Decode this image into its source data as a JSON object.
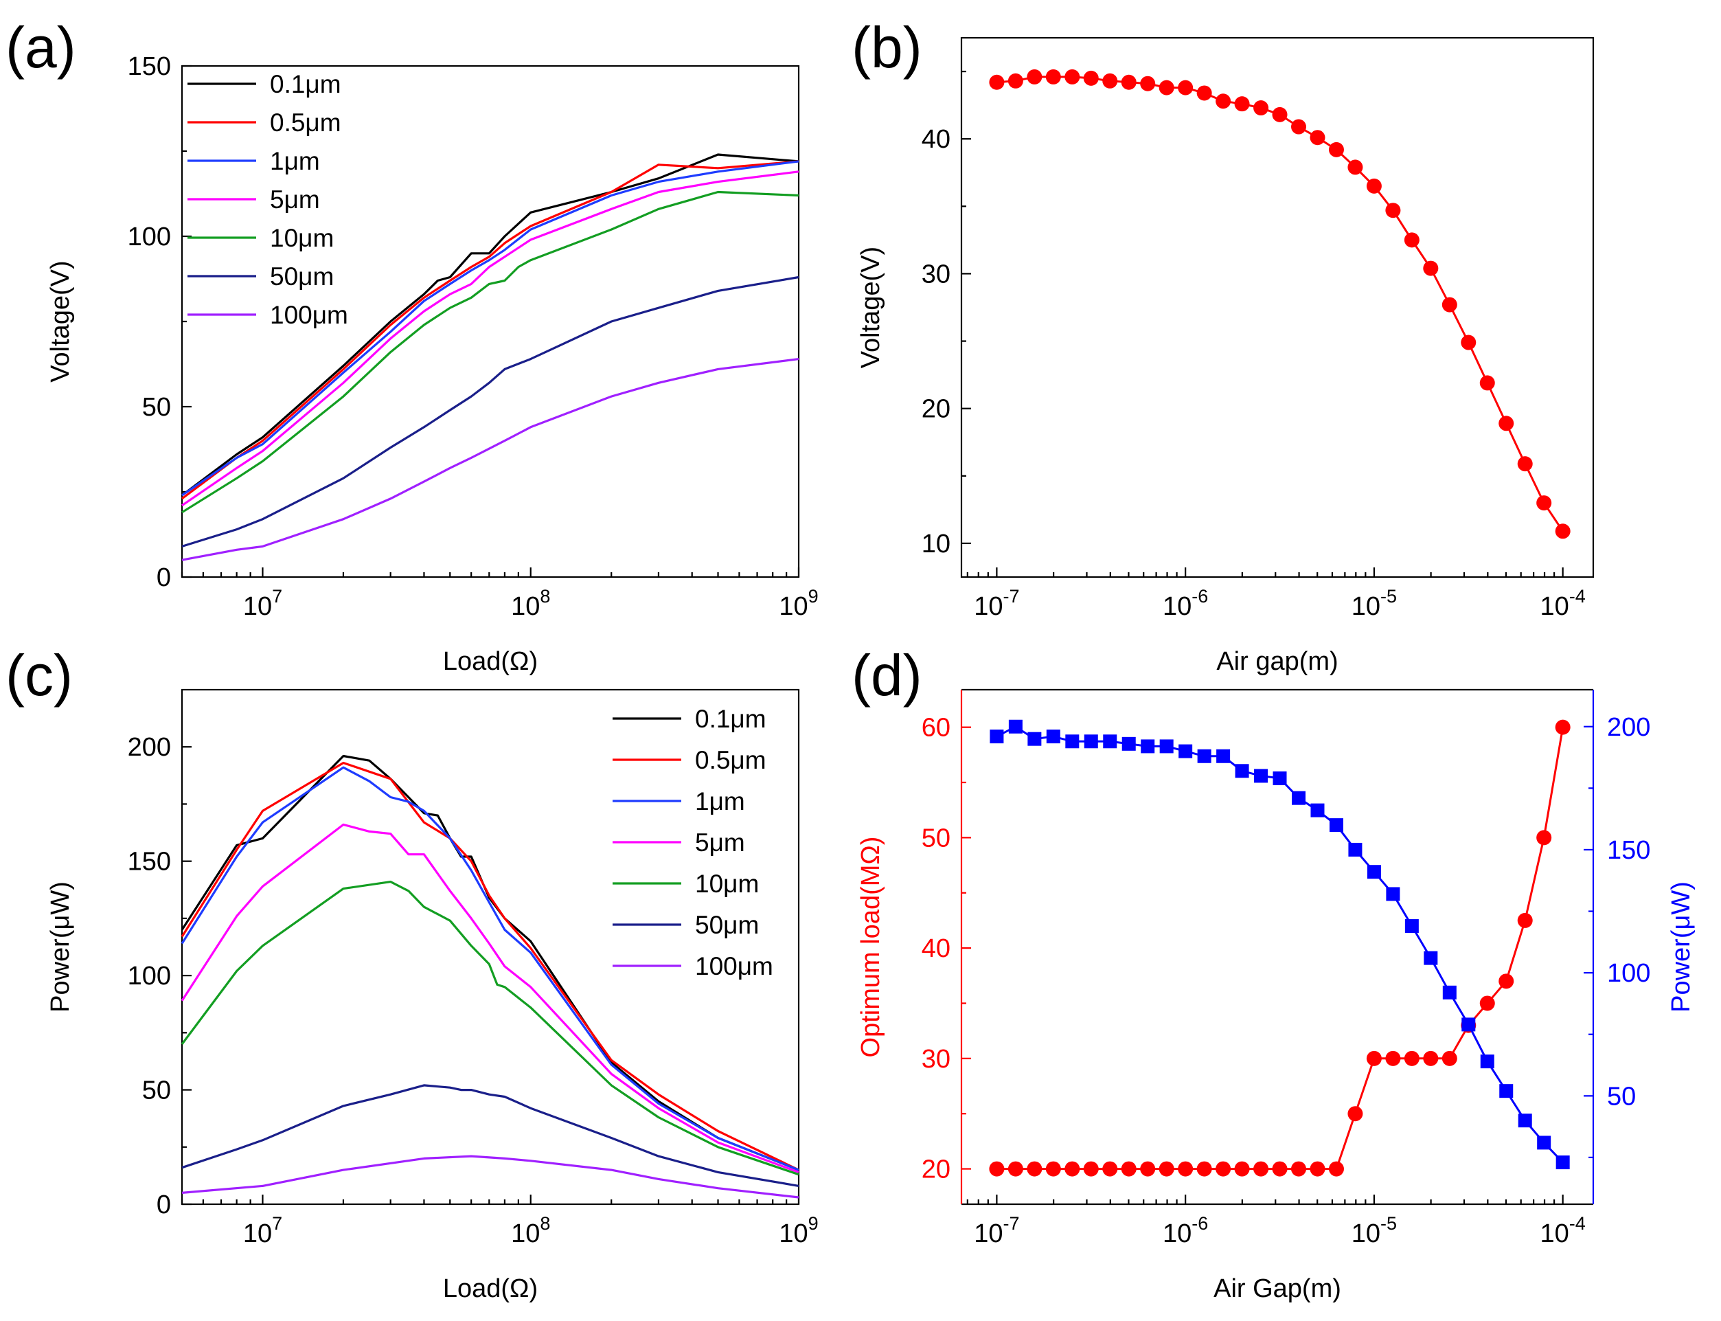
{
  "chart_data": [
    {
      "panel": "(a)",
      "type": "line",
      "xscale": "log",
      "xlim": [
        5000000,
        1000000000
      ],
      "ylim": [
        0,
        150
      ],
      "xlabel": "Load(Ω)",
      "ylabel": "Voltage(V)",
      "xticks": [
        {
          "value": 10000000,
          "base": "10",
          "exp": "7"
        },
        {
          "value": 100000000,
          "base": "10",
          "exp": "8"
        },
        {
          "value": 1000000000,
          "base": "10",
          "exp": "9"
        }
      ],
      "yticks": [
        {
          "value": 0,
          "label": "0"
        },
        {
          "value": 50,
          "label": "50"
        },
        {
          "value": 100,
          "label": "100"
        },
        {
          "value": 150,
          "label": "150"
        }
      ],
      "legend_position": "top-left",
      "series": [
        {
          "name": "0.1μm",
          "color": "#000000",
          "x": [
            5000000.0,
            8000000.0,
            10000000.0,
            20000000.0,
            30000000.0,
            40000000.0,
            45000000.0,
            50000000.0,
            60000000.0,
            70000000.0,
            80000000.0,
            100000000.0,
            200000000.0,
            300000000.0,
            500000000.0,
            1000000000.0
          ],
          "y": [
            24,
            36,
            41,
            62,
            75,
            83,
            87,
            88,
            95,
            95,
            100,
            107,
            113,
            117,
            124,
            122
          ]
        },
        {
          "name": "0.5μm",
          "color": "#ff0000",
          "x": [
            5000000.0,
            8000000.0,
            10000000.0,
            20000000.0,
            30000000.0,
            40000000.0,
            50000000.0,
            60000000.0,
            70000000.0,
            80000000.0,
            100000000.0,
            200000000.0,
            300000000.0,
            500000000.0,
            1000000000.0
          ],
          "y": [
            23,
            35,
            40,
            61,
            74,
            82,
            87,
            91,
            94,
            98,
            103,
            113,
            121,
            120,
            122
          ]
        },
        {
          "name": "1μm",
          "color": "#1e3cff",
          "x": [
            5000000.0,
            8000000.0,
            10000000.0,
            20000000.0,
            30000000.0,
            40000000.0,
            50000000.0,
            60000000.0,
            70000000.0,
            80000000.0,
            100000000.0,
            200000000.0,
            300000000.0,
            500000000.0,
            1000000000.0
          ],
          "y": [
            24,
            35,
            39,
            60,
            72,
            81,
            86,
            90,
            93,
            96,
            102,
            112,
            116,
            119,
            122
          ]
        },
        {
          "name": "5μm",
          "color": "#ff00ff",
          "x": [
            5000000.0,
            8000000.0,
            10000000.0,
            20000000.0,
            30000000.0,
            40000000.0,
            50000000.0,
            60000000.0,
            70000000.0,
            80000000.0,
            100000000.0,
            200000000.0,
            300000000.0,
            500000000.0,
            1000000000.0
          ],
          "y": [
            21,
            32,
            37,
            57,
            70,
            78,
            83,
            86,
            91,
            94,
            99,
            108,
            113,
            116,
            119
          ]
        },
        {
          "name": "10μm",
          "color": "#139e22",
          "x": [
            5000000.0,
            8000000.0,
            10000000.0,
            20000000.0,
            30000000.0,
            40000000.0,
            50000000.0,
            60000000.0,
            70000000.0,
            80000000.0,
            90000000.0,
            100000000.0,
            200000000.0,
            300000000.0,
            500000000.0,
            1000000000.0
          ],
          "y": [
            19,
            29,
            34,
            53,
            66,
            74,
            79,
            82,
            86,
            87,
            91,
            93,
            102,
            108,
            113,
            112
          ]
        },
        {
          "name": "50μm",
          "color": "#1a1f8a",
          "x": [
            5000000.0,
            8000000.0,
            10000000.0,
            20000000.0,
            30000000.0,
            40000000.0,
            50000000.0,
            60000000.0,
            70000000.0,
            80000000.0,
            100000000.0,
            200000000.0,
            300000000.0,
            500000000.0,
            1000000000.0
          ],
          "y": [
            9,
            14,
            17,
            29,
            38,
            44,
            49,
            53,
            57,
            61,
            64,
            75,
            79,
            84,
            88
          ]
        },
        {
          "name": "100μm",
          "color": "#a020ff",
          "x": [
            5000000.0,
            8000000.0,
            10000000.0,
            20000000.0,
            30000000.0,
            40000000.0,
            50000000.0,
            60000000.0,
            80000000.0,
            100000000.0,
            200000000.0,
            300000000.0,
            500000000.0,
            1000000000.0
          ],
          "y": [
            5,
            8,
            9,
            17,
            23,
            28,
            32,
            35,
            40,
            44,
            53,
            57,
            61,
            64
          ]
        }
      ]
    },
    {
      "panel": "(b)",
      "type": "line+markers",
      "xscale": "log",
      "xlim": [
        6.5e-08,
        0.000145
      ],
      "ylim": [
        7.5,
        47.5
      ],
      "xlabel": "Air gap(m)",
      "ylabel": "Voltage(V)",
      "xticks": [
        {
          "value": 1e-07,
          "base": "10",
          "exp": "-7"
        },
        {
          "value": 1e-06,
          "base": "10",
          "exp": "-6"
        },
        {
          "value": 1e-05,
          "base": "10",
          "exp": "-5"
        },
        {
          "value": 0.0001,
          "base": "10",
          "exp": "-4"
        }
      ],
      "yticks": [
        {
          "value": 10,
          "label": "10"
        },
        {
          "value": 20,
          "label": "20"
        },
        {
          "value": 30,
          "label": "30"
        },
        {
          "value": 40,
          "label": "40"
        }
      ],
      "series": [
        {
          "name": "Voltage",
          "color": "#ff0000",
          "marker": "circle",
          "x": [
            1e-07,
            1.259e-07,
            1.585e-07,
            1.995e-07,
            2.512e-07,
            3.162e-07,
            3.981e-07,
            5.012e-07,
            6.31e-07,
            7.943e-07,
            1e-06,
            1.259e-06,
            1.585e-06,
            1.995e-06,
            2.512e-06,
            3.162e-06,
            3.981e-06,
            5.012e-06,
            6.31e-06,
            7.943e-06,
            1e-05,
            1.259e-05,
            1.585e-05,
            1.995e-05,
            2.512e-05,
            3.162e-05,
            3.981e-05,
            5.012e-05,
            6.31e-05,
            7.943e-05,
            0.0001
          ],
          "y": [
            44.2,
            44.3,
            44.6,
            44.6,
            44.6,
            44.5,
            44.3,
            44.2,
            44.1,
            43.8,
            43.8,
            43.4,
            42.8,
            42.6,
            42.3,
            41.8,
            40.9,
            40.1,
            39.2,
            37.9,
            36.5,
            34.7,
            32.5,
            30.4,
            27.7,
            24.9,
            21.9,
            18.9,
            15.9,
            13.0,
            10.9
          ]
        }
      ]
    },
    {
      "panel": "(c)",
      "type": "line",
      "xscale": "log",
      "xlim": [
        5000000,
        1000000000
      ],
      "ylim": [
        0,
        225
      ],
      "xlabel": "Load(Ω)",
      "ylabel": "Power(μW)",
      "xticks": [
        {
          "value": 10000000,
          "base": "10",
          "exp": "7"
        },
        {
          "value": 100000000,
          "base": "10",
          "exp": "8"
        },
        {
          "value": 1000000000,
          "base": "10",
          "exp": "9"
        }
      ],
      "yticks": [
        {
          "value": 0,
          "label": "0"
        },
        {
          "value": 50,
          "label": "50"
        },
        {
          "value": 100,
          "label": "100"
        },
        {
          "value": 150,
          "label": "150"
        },
        {
          "value": 200,
          "label": "200"
        }
      ],
      "legend_position": "top-right",
      "series": [
        {
          "name": "0.1μm",
          "color": "#000000",
          "x": [
            5000000.0,
            8000000.0,
            10000000.0,
            20000000.0,
            25000000.0,
            30000000.0,
            35000000.0,
            40000000.0,
            45000000.0,
            50000000.0,
            55000000.0,
            60000000.0,
            70000000.0,
            80000000.0,
            100000000.0,
            200000000.0,
            300000000.0,
            500000000.0,
            1000000000.0
          ],
          "y": [
            120,
            157,
            160,
            196,
            194,
            186,
            178,
            171,
            170,
            160,
            152,
            152,
            134,
            125,
            115,
            62,
            45,
            29,
            15
          ]
        },
        {
          "name": "0.5μm",
          "color": "#ff0000",
          "x": [
            5000000.0,
            8000000.0,
            10000000.0,
            20000000.0,
            30000000.0,
            40000000.0,
            50000000.0,
            60000000.0,
            70000000.0,
            80000000.0,
            100000000.0,
            200000000.0,
            300000000.0,
            500000000.0,
            1000000000.0
          ],
          "y": [
            117,
            155,
            172,
            193,
            186,
            167,
            160,
            150,
            135,
            125,
            112,
            63,
            48,
            32,
            15
          ]
        },
        {
          "name": "1μm",
          "color": "#1e3cff",
          "x": [
            5000000.0,
            8000000.0,
            10000000.0,
            20000000.0,
            25000000.0,
            30000000.0,
            35000000.0,
            40000000.0,
            50000000.0,
            60000000.0,
            70000000.0,
            80000000.0,
            100000000.0,
            200000000.0,
            300000000.0,
            500000000.0,
            1000000000.0
          ],
          "y": [
            114,
            152,
            167,
            191,
            185,
            178,
            176,
            172,
            160,
            146,
            132,
            120,
            110,
            61,
            44,
            29,
            15
          ]
        },
        {
          "name": "5μm",
          "color": "#ff00ff",
          "x": [
            5000000.0,
            8000000.0,
            10000000.0,
            20000000.0,
            25000000.0,
            30000000.0,
            35000000.0,
            40000000.0,
            50000000.0,
            60000000.0,
            70000000.0,
            80000000.0,
            100000000.0,
            200000000.0,
            300000000.0,
            500000000.0,
            1000000000.0
          ],
          "y": [
            89,
            126,
            139,
            166,
            163,
            162,
            153,
            153,
            137,
            125,
            114,
            104,
            95,
            57,
            42,
            27,
            14
          ]
        },
        {
          "name": "10μm",
          "color": "#139e22",
          "x": [
            5000000.0,
            8000000.0,
            10000000.0,
            20000000.0,
            30000000.0,
            35000000.0,
            40000000.0,
            50000000.0,
            60000000.0,
            70000000.0,
            75000000.0,
            80000000.0,
            100000000.0,
            200000000.0,
            300000000.0,
            500000000.0,
            1000000000.0
          ],
          "y": [
            70,
            102,
            113,
            138,
            141,
            137,
            130,
            124,
            113,
            105,
            96,
            95,
            86,
            52,
            38,
            25,
            13
          ]
        },
        {
          "name": "50μm",
          "color": "#1a1f8a",
          "x": [
            5000000.0,
            8000000.0,
            10000000.0,
            20000000.0,
            30000000.0,
            40000000.0,
            50000000.0,
            55000000.0,
            60000000.0,
            70000000.0,
            80000000.0,
            100000000.0,
            200000000.0,
            300000000.0,
            500000000.0,
            1000000000.0
          ],
          "y": [
            16,
            24,
            28,
            43,
            48,
            52,
            51,
            50,
            50,
            48,
            47,
            42,
            29,
            21,
            14,
            8
          ]
        },
        {
          "name": "100μm",
          "color": "#a020ff",
          "x": [
            5000000.0,
            10000000.0,
            20000000.0,
            40000000.0,
            60000000.0,
            80000000.0,
            100000000.0,
            200000000.0,
            300000000.0,
            500000000.0,
            1000000000.0
          ],
          "y": [
            5,
            8,
            15,
            20,
            21,
            20,
            19,
            15,
            11,
            7,
            3
          ]
        }
      ]
    },
    {
      "panel": "(d)",
      "type": "line+markers",
      "xscale": "log",
      "xlim": [
        6.5e-08,
        0.000145
      ],
      "xlabel": "Air Gap(m)",
      "ylabel_left": "Optimum load(MΩ)",
      "ylabel_right": "Power(μW)",
      "ylim_left": [
        16.8,
        63.4
      ],
      "ylim_right": [
        6,
        215
      ],
      "xticks": [
        {
          "value": 1e-07,
          "base": "10",
          "exp": "-7"
        },
        {
          "value": 1e-06,
          "base": "10",
          "exp": "-6"
        },
        {
          "value": 1e-05,
          "base": "10",
          "exp": "-5"
        },
        {
          "value": 0.0001,
          "base": "10",
          "exp": "-4"
        }
      ],
      "yticks_left": [
        {
          "value": 20,
          "label": "20"
        },
        {
          "value": 30,
          "label": "30"
        },
        {
          "value": 40,
          "label": "40"
        },
        {
          "value": 50,
          "label": "50"
        },
        {
          "value": 60,
          "label": "60"
        }
      ],
      "yticks_right": [
        {
          "value": 50,
          "label": "50"
        },
        {
          "value": 100,
          "label": "100"
        },
        {
          "value": 150,
          "label": "150"
        },
        {
          "value": 200,
          "label": "200"
        }
      ],
      "left_color": "#ff0000",
      "right_color": "#0000ff",
      "series": [
        {
          "name": "Optimum load",
          "axis": "left",
          "color": "#ff0000",
          "marker": "circle",
          "x": [
            1e-07,
            1.259e-07,
            1.585e-07,
            1.995e-07,
            2.512e-07,
            3.162e-07,
            3.981e-07,
            5.012e-07,
            6.31e-07,
            7.943e-07,
            1e-06,
            1.259e-06,
            1.585e-06,
            1.995e-06,
            2.512e-06,
            3.162e-06,
            3.981e-06,
            5.012e-06,
            6.31e-06,
            7.943e-06,
            1e-05,
            1.259e-05,
            1.585e-05,
            1.995e-05,
            2.512e-05,
            3.162e-05,
            3.981e-05,
            5.012e-05,
            6.31e-05,
            7.943e-05,
            0.0001
          ],
          "y": [
            20,
            20,
            20,
            20,
            20,
            20,
            20,
            20,
            20,
            20,
            20,
            20,
            20,
            20,
            20,
            20,
            20,
            20,
            20,
            25,
            30,
            30,
            30,
            30,
            30,
            33,
            35,
            37,
            42.5,
            50,
            60
          ]
        },
        {
          "name": "Power",
          "axis": "right",
          "color": "#0000ff",
          "marker": "square",
          "x": [
            1e-07,
            1.259e-07,
            1.585e-07,
            1.995e-07,
            2.512e-07,
            3.162e-07,
            3.981e-07,
            5.012e-07,
            6.31e-07,
            7.943e-07,
            1e-06,
            1.259e-06,
            1.585e-06,
            1.995e-06,
            2.512e-06,
            3.162e-06,
            3.981e-06,
            5.012e-06,
            6.31e-06,
            7.943e-06,
            1e-05,
            1.259e-05,
            1.585e-05,
            1.995e-05,
            2.512e-05,
            3.162e-05,
            3.981e-05,
            5.012e-05,
            6.31e-05,
            7.943e-05,
            0.0001
          ],
          "y": [
            196,
            200,
            195,
            196,
            194,
            194,
            194,
            193,
            192,
            192,
            190,
            188,
            188,
            182,
            180,
            179,
            171,
            166,
            160,
            150,
            141,
            132,
            119,
            106,
            92,
            79,
            64,
            52,
            40,
            31,
            23
          ]
        }
      ]
    }
  ]
}
